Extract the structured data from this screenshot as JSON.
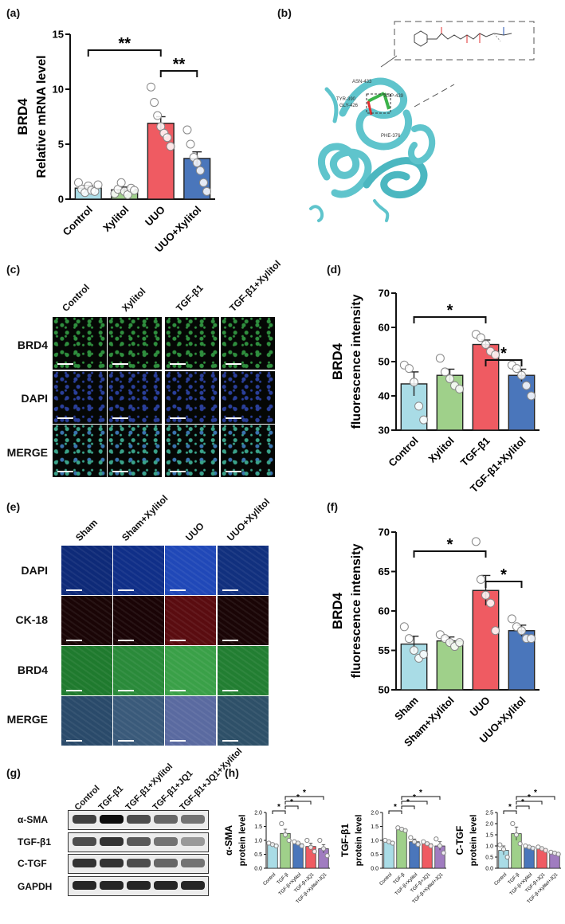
{
  "panels": {
    "a": {
      "label": "(a)"
    },
    "b": {
      "label": "(b)"
    },
    "c": {
      "label": "(c)"
    },
    "d": {
      "label": "(d)"
    },
    "e": {
      "label": "(e)"
    },
    "f": {
      "label": "(f)"
    },
    "g": {
      "label": "(g)"
    },
    "h": {
      "label": "(h)"
    }
  },
  "chart_data": [
    {
      "id": "a",
      "type": "bar",
      "ylabel_line1": "BRD4",
      "ylabel_line2": "Relative mRNA level",
      "categories": [
        "Control",
        "Xylitol",
        "UUO",
        "UUO+Xylitol"
      ],
      "values": [
        1.0,
        0.85,
        6.9,
        3.7
      ],
      "errors": [
        0.25,
        0.25,
        0.6,
        0.6
      ],
      "colors": [
        "#a9dce6",
        "#9fd08a",
        "#ef5b62",
        "#4a76bb"
      ],
      "points": [
        [
          1.5,
          0.9,
          0.6,
          1.2,
          0.8,
          0.7,
          1.3
        ],
        [
          0.5,
          0.9,
          1.5,
          0.7,
          0.4,
          1.0,
          0.8
        ],
        [
          10.2,
          8.8,
          7.6,
          6.6,
          6.0,
          5.6,
          4.8
        ],
        [
          6.3,
          5.0,
          3.8,
          3.3,
          2.6,
          1.5,
          0.7
        ]
      ],
      "yticks": [
        0,
        5,
        10,
        15
      ],
      "ylim": [
        0,
        15
      ],
      "sig": [
        {
          "from": 0,
          "to": 2,
          "label": "**"
        },
        {
          "from": 2,
          "to": 3,
          "label": "**"
        }
      ]
    },
    {
      "id": "d",
      "type": "bar",
      "ylabel_line1": "BRD4",
      "ylabel_line2": "fluorescence intensity",
      "categories": [
        "Control",
        "Xylitol",
        "TGF-β1",
        "TGF-β1+Xylitol"
      ],
      "values": [
        43.5,
        46.0,
        55.0,
        46.0
      ],
      "errors": [
        3.5,
        1.8,
        1.3,
        1.8
      ],
      "colors": [
        "#a9dce6",
        "#9fd08a",
        "#ef5b62",
        "#4a76bb"
      ],
      "points": [
        [
          49.0,
          48.0,
          44.0,
          37.0,
          33.0
        ],
        [
          51.0,
          47.0,
          45.0,
          43.0,
          42.0
        ],
        [
          58.0,
          57.0,
          55.0,
          53.0,
          52.0
        ],
        [
          49.0,
          48.0,
          46.0,
          43.0,
          40.0
        ]
      ],
      "yticks": [
        30,
        40,
        50,
        60,
        70
      ],
      "ylim": [
        30,
        70
      ],
      "sig": [
        {
          "from": 0,
          "to": 2,
          "label": "*"
        },
        {
          "from": 2,
          "to": 3,
          "label": "*"
        }
      ]
    },
    {
      "id": "f",
      "type": "bar",
      "ylabel_line1": "BRD4",
      "ylabel_line2": "fluorescence intensity",
      "categories": [
        "Sham",
        "Sham+Xylitol",
        "UUO",
        "UUO+Xylitol"
      ],
      "values": [
        55.8,
        56.2,
        62.6,
        57.5
      ],
      "errors": [
        1.0,
        0.5,
        1.9,
        0.7
      ],
      "colors": [
        "#a9dce6",
        "#9fd08a",
        "#ef5b62",
        "#4a76bb"
      ],
      "points": [
        [
          58.0,
          56.5,
          55.0,
          54.0,
          54.5
        ],
        [
          57.0,
          56.5,
          56.0,
          55.5,
          56.0
        ],
        [
          68.8,
          64.0,
          62.0,
          61.0,
          57.5
        ],
        [
          59.0,
          58.0,
          57.5,
          56.5,
          56.5
        ]
      ],
      "yticks": [
        50,
        55,
        60,
        65,
        70
      ],
      "ylim": [
        50,
        70
      ],
      "sig": [
        {
          "from": 0,
          "to": 2,
          "label": "*"
        },
        {
          "from": 2,
          "to": 3,
          "label": "*"
        }
      ]
    },
    {
      "id": "h1",
      "type": "bar",
      "ylabel_line1": "α-SMA",
      "ylabel_line2": "protein level",
      "categories": [
        "Control",
        "TGF-β",
        "TGF-β+Xylitol",
        "TGF-β+JQ1",
        "TGF-β+Xylitol+JQ1"
      ],
      "values": [
        0.85,
        1.25,
        0.88,
        0.78,
        0.7
      ],
      "errors": [
        0.05,
        0.15,
        0.05,
        0.12,
        0.15
      ],
      "colors": [
        "#a9dce6",
        "#9fd08a",
        "#4a76bb",
        "#ef5b62",
        "#a07cc0"
      ],
      "points": [
        [
          0.9,
          0.85,
          0.8
        ],
        [
          1.6,
          1.2,
          1.0
        ],
        [
          0.95,
          0.9,
          0.8
        ],
        [
          1.0,
          0.75,
          0.6
        ],
        [
          1.0,
          0.7,
          0.45
        ]
      ],
      "yticks": [
        0.0,
        0.5,
        1.0,
        1.5,
        2.0
      ],
      "ytick_labels": [
        "0.0",
        "0.5",
        "1.0",
        "1.5",
        "2.0"
      ],
      "ylim": [
        0,
        2.0
      ],
      "sig": [
        {
          "from": 0,
          "to": 1,
          "label": "*"
        },
        {
          "from": 1,
          "to": 2,
          "label": "*"
        },
        {
          "from": 1,
          "to": 3,
          "label": "*"
        },
        {
          "from": 1,
          "to": 4,
          "label": "*"
        }
      ]
    },
    {
      "id": "h2",
      "type": "bar",
      "ylabel_line1": "TGF-β1",
      "ylabel_line2": "protein level",
      "categories": [
        "Control",
        "TGF-β",
        "TGF-β+Xylitol",
        "TGF-β+JQ1",
        "TGF-β+Xylitol+JQ1"
      ],
      "values": [
        0.95,
        1.4,
        0.95,
        0.88,
        0.8
      ],
      "errors": [
        0.06,
        0.06,
        0.1,
        0.06,
        0.15
      ],
      "colors": [
        "#a9dce6",
        "#9fd08a",
        "#4a76bb",
        "#ef5b62",
        "#a07cc0"
      ],
      "points": [
        [
          1.0,
          0.95,
          0.9
        ],
        [
          1.45,
          1.4,
          1.35
        ],
        [
          1.1,
          0.95,
          0.85
        ],
        [
          0.95,
          0.88,
          0.8
        ],
        [
          1.05,
          0.8,
          0.55
        ]
      ],
      "yticks": [
        0.0,
        0.5,
        1.0,
        1.5,
        2.0
      ],
      "ytick_labels": [
        "0.0",
        "0.5",
        "1.0",
        "1.5",
        "2.0"
      ],
      "ylim": [
        0,
        2.0
      ],
      "sig": [
        {
          "from": 0,
          "to": 1,
          "label": "*"
        },
        {
          "from": 1,
          "to": 2,
          "label": "*"
        },
        {
          "from": 1,
          "to": 3,
          "label": "*"
        },
        {
          "from": 1,
          "to": 4,
          "label": "*"
        }
      ]
    },
    {
      "id": "h3",
      "type": "bar",
      "ylabel_line1": "C-TGF",
      "ylabel_line2": "protein level",
      "categories": [
        "Control",
        "TGF-β",
        "TGF-β+Xylitol",
        "TGF-β+JQ1",
        "TGF-β+Xylitol+JQ1"
      ],
      "values": [
        0.8,
        1.55,
        0.95,
        0.88,
        0.68
      ],
      "errors": [
        0.2,
        0.3,
        0.05,
        0.06,
        0.05
      ],
      "colors": [
        "#a9dce6",
        "#9fd08a",
        "#4a76bb",
        "#ef5b62",
        "#a07cc0"
      ],
      "points": [
        [
          1.05,
          0.85,
          0.5
        ],
        [
          2.0,
          1.5,
          1.1
        ],
        [
          1.0,
          0.95,
          0.9
        ],
        [
          0.95,
          0.88,
          0.8
        ],
        [
          0.72,
          0.68,
          0.63
        ]
      ],
      "yticks": [
        0.0,
        0.5,
        1.0,
        1.5,
        2.0,
        2.5
      ],
      "ytick_labels": [
        "0.0",
        "0.5",
        "1.0",
        "1.5",
        "2.0",
        "2.5"
      ],
      "ylim": [
        0,
        2.5
      ],
      "sig": [
        {
          "from": 0,
          "to": 1,
          "label": "*"
        },
        {
          "from": 1,
          "to": 2,
          "label": "*"
        },
        {
          "from": 1,
          "to": 3,
          "label": "*"
        },
        {
          "from": 1,
          "to": 4,
          "label": "*"
        }
      ]
    }
  ],
  "panel_b": {
    "residues": [
      "ASN-433",
      "ASP-439",
      "TYR-390",
      "GLY-426",
      "PHE-376"
    ],
    "colors": {
      "protein": "#5fc4cc",
      "ligand": "#3bb34a"
    }
  },
  "panel_c": {
    "columns": [
      "Control",
      "Xylitol",
      "TGF-β1",
      "TGF-β1+Xylitol"
    ],
    "rows": [
      "BRD4",
      "DAPI",
      "MERGE"
    ]
  },
  "panel_e": {
    "columns": [
      "Sham",
      "Sham+Xylitol",
      "UUO",
      "UUO+Xylitol"
    ],
    "rows": [
      "DAPI",
      "CK-18",
      "BRD4",
      "MERGE"
    ]
  },
  "panel_g": {
    "columns": [
      "Control",
      "TGF-β1",
      "TGF-β1+Xylitol",
      "TGF-β1+JQ1",
      "TGF-β1+JQ1+Xylitol"
    ],
    "rows": [
      "α-SMA",
      "TGF-β1",
      "C-TGF",
      "GAPDH"
    ]
  }
}
